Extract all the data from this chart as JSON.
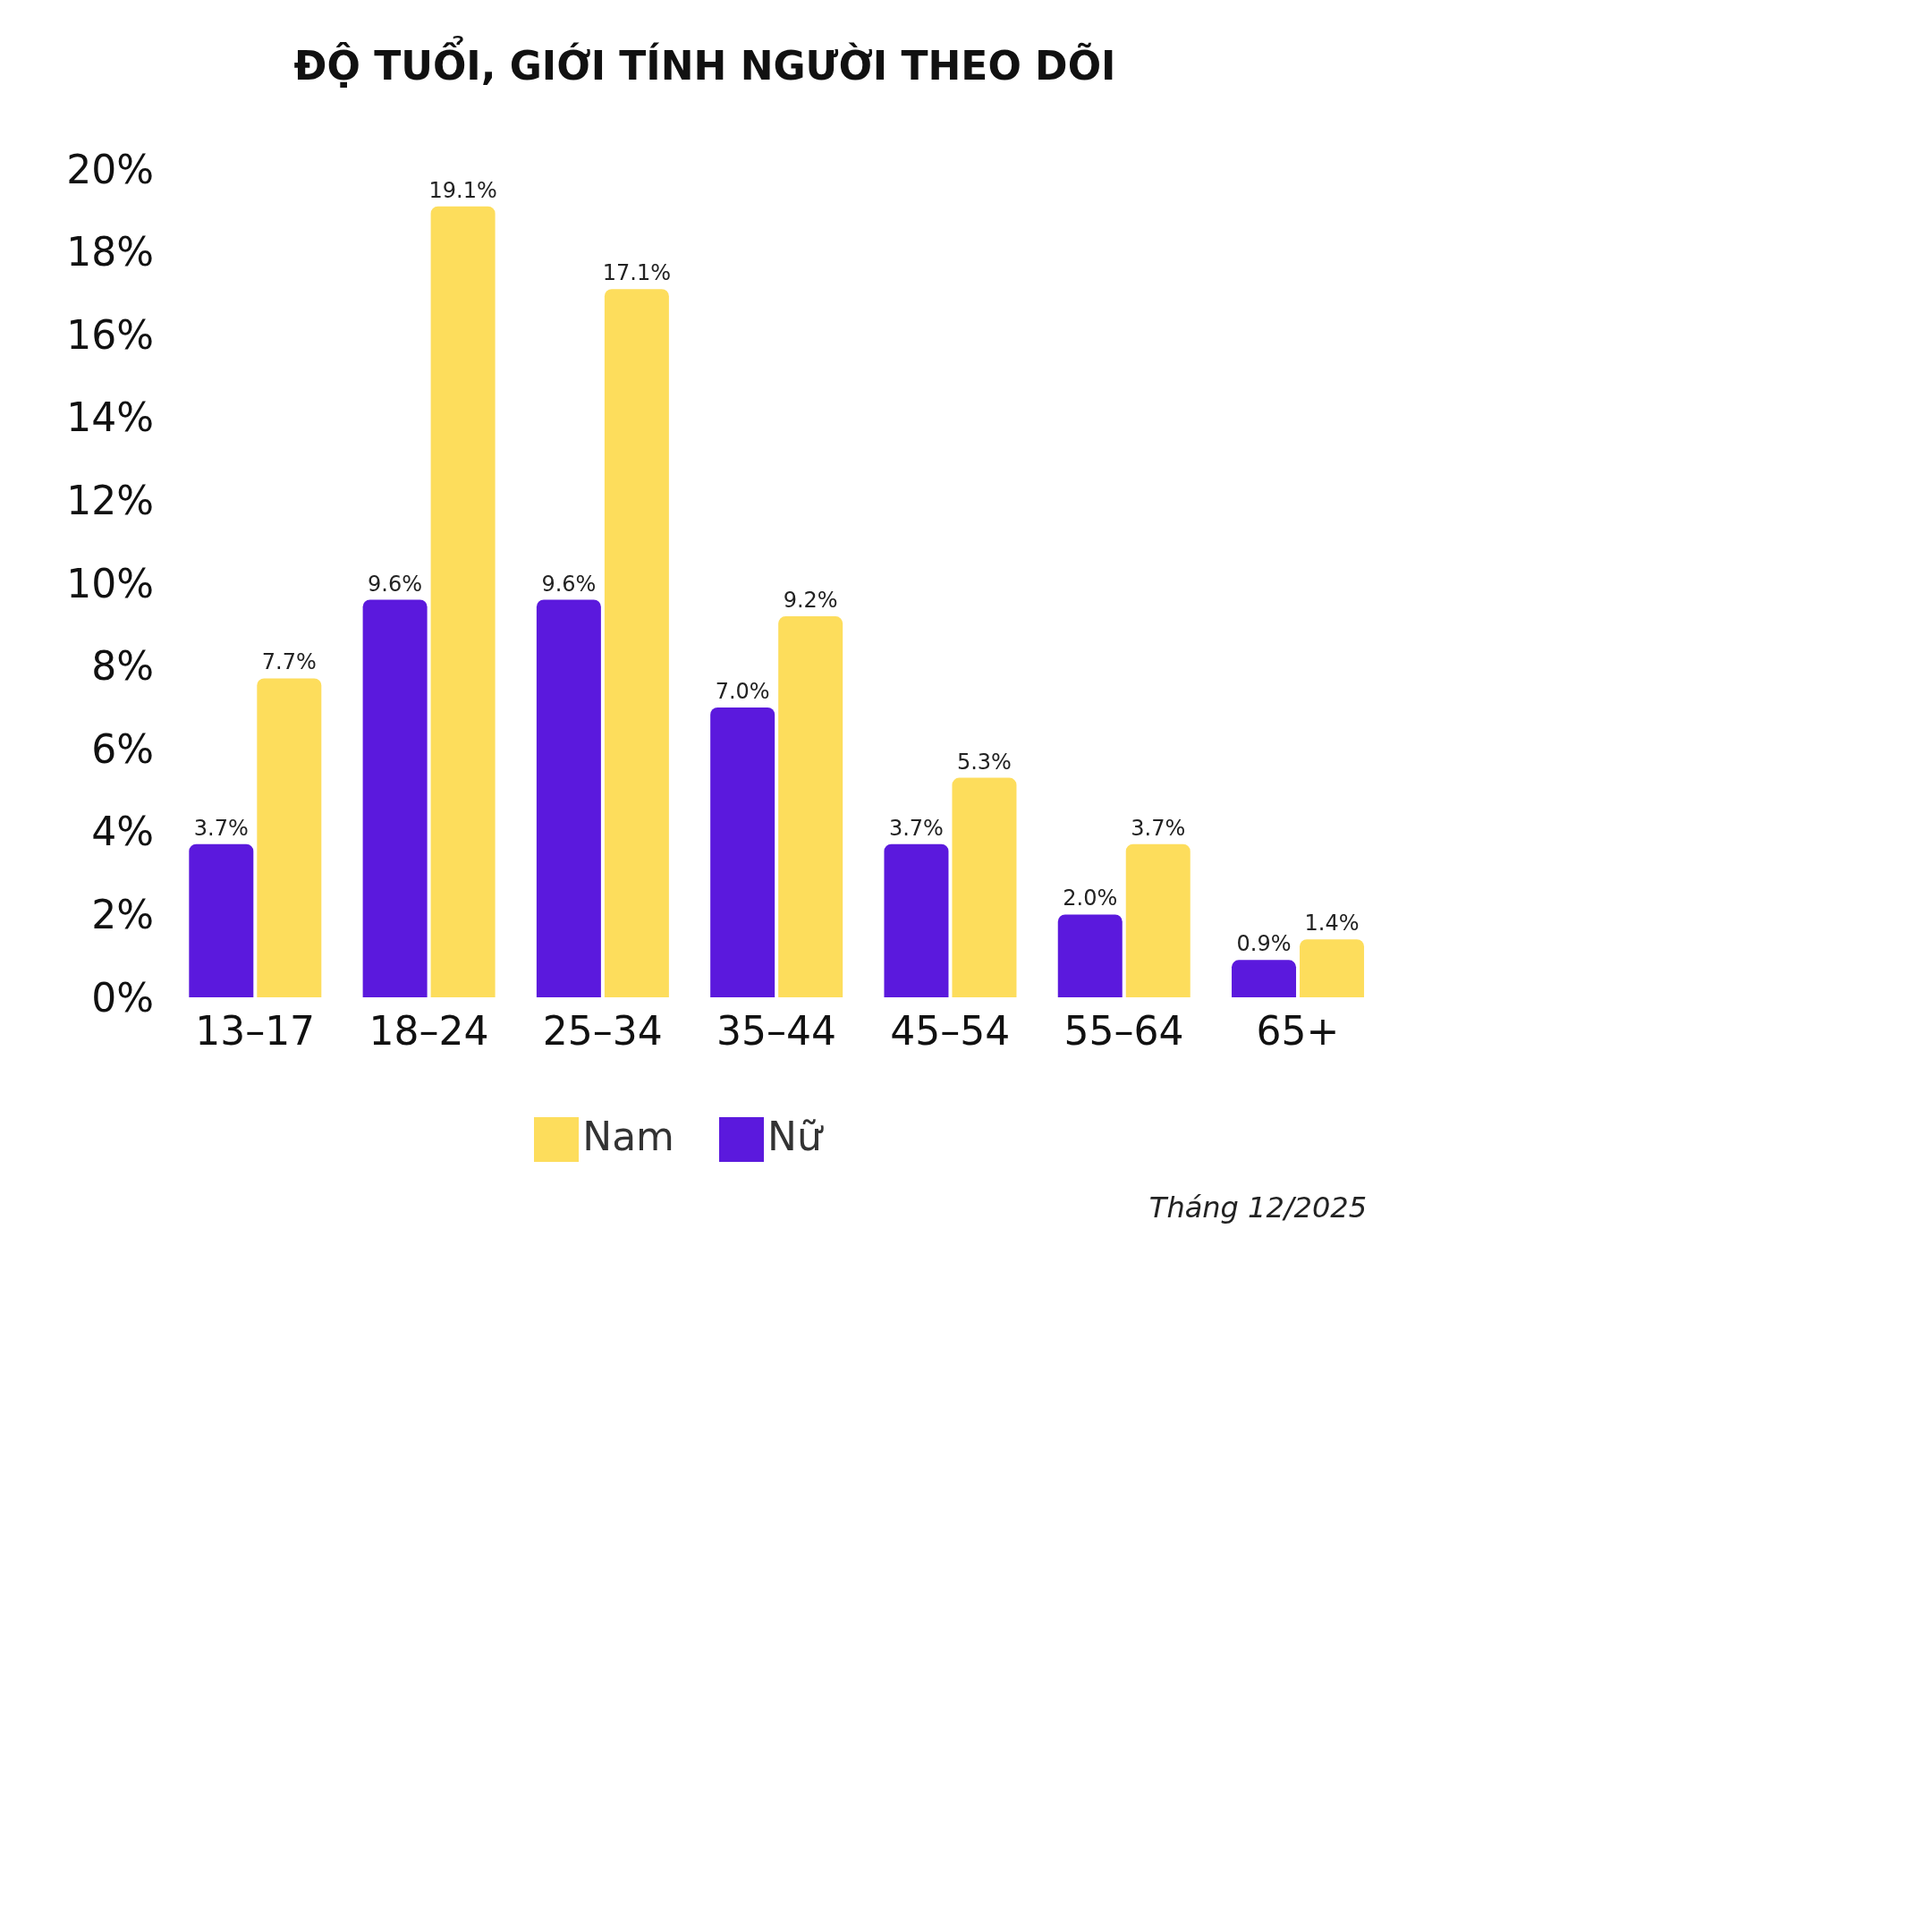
{
  "chart_data": {
    "type": "bar",
    "title": "ĐỘ TUỔI, GIỚI TÍNH NGƯỜI THEO DÕI",
    "categories": [
      "13–17",
      "18–24",
      "25–34",
      "35–44",
      "45–54",
      "55–64",
      "65+"
    ],
    "series": [
      {
        "name": "Nữ",
        "color": "#5b19dd",
        "values": [
          3.7,
          9.6,
          9.6,
          7.0,
          3.7,
          2.0,
          0.9
        ],
        "value_labels": [
          "3.7%",
          "9.6%",
          "9.6%",
          "7.0%",
          "3.7%",
          "2.0%",
          "0.9%"
        ]
      },
      {
        "name": "Nam",
        "color": "#fddd5c",
        "values": [
          7.7,
          19.1,
          17.1,
          9.2,
          5.3,
          3.7,
          1.4
        ],
        "value_labels": [
          "7.7%",
          "19.1%",
          "17.1%",
          "9.2%",
          "5.3%",
          "3.7%",
          "1.4%"
        ]
      }
    ],
    "ylim": [
      0,
      20
    ],
    "yticks": [
      {
        "value": 0,
        "label": "0%"
      },
      {
        "value": 2,
        "label": "2%"
      },
      {
        "value": 4,
        "label": "4%"
      },
      {
        "value": 6,
        "label": "6%"
      },
      {
        "value": 8,
        "label": "8%"
      },
      {
        "value": 10,
        "label": "10%"
      },
      {
        "value": 12,
        "label": "12%"
      },
      {
        "value": 14,
        "label": "14%"
      },
      {
        "value": 16,
        "label": "16%"
      },
      {
        "value": 18,
        "label": "18%"
      },
      {
        "value": 20,
        "label": "20%"
      }
    ],
    "grid": false,
    "legend": "bottom",
    "annotations": [
      "Tháng 12/2025"
    ]
  }
}
